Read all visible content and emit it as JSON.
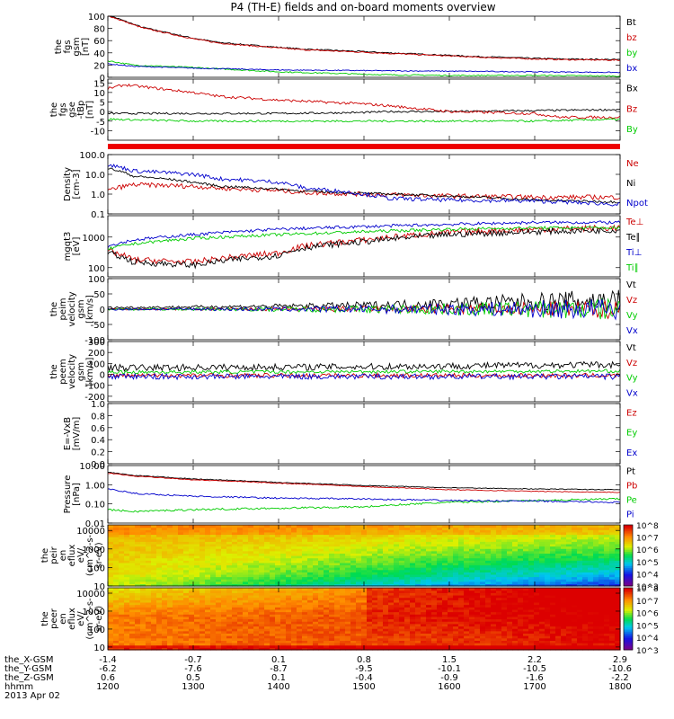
{
  "title": "P4 (TH-E) fields and on-board moments overview",
  "chart_data": [
    {
      "id": "fgs_gsm",
      "type": "line",
      "ylabel": [
        "the",
        "fgs",
        "gsm",
        "[nT]"
      ],
      "ylim": [
        0,
        100
      ],
      "yticks": [
        0,
        20,
        40,
        60,
        80,
        100
      ],
      "ylog": false,
      "series": [
        {
          "name": "Bt",
          "color": "#000000",
          "x": [
            1200,
            1220,
            1240,
            1300,
            1330,
            1400,
            1430,
            1500,
            1530,
            1600,
            1630,
            1700,
            1730,
            1800
          ],
          "y": [
            102,
            92,
            82,
            64,
            57,
            49,
            46,
            42,
            40,
            36,
            34,
            31,
            30,
            29
          ],
          "noise": 1
        },
        {
          "name": "bz",
          "color": "#cc0000",
          "x": [
            1200,
            1220,
            1240,
            1300,
            1330,
            1400,
            1430,
            1500,
            1530,
            1600,
            1630,
            1700,
            1730,
            1800
          ],
          "y": [
            101,
            91,
            81,
            63,
            56,
            48,
            45,
            41,
            39,
            35,
            33,
            30,
            29,
            28
          ],
          "noise": 1
        },
        {
          "name": "by",
          "color": "#00cc00",
          "x": [
            1200,
            1230,
            1300,
            1400,
            1500,
            1530,
            1600,
            1700,
            1800
          ],
          "y": [
            27,
            20,
            16,
            9,
            5,
            4,
            3,
            3,
            2
          ],
          "noise": 1
        },
        {
          "name": "bx",
          "color": "#0000cc",
          "x": [
            1200,
            1230,
            1300,
            1400,
            1500,
            1600,
            1700,
            1800
          ],
          "y": [
            22,
            18,
            15,
            12,
            11,
            10,
            9,
            8
          ],
          "noise": 0.8
        }
      ]
    },
    {
      "id": "fgs_gse",
      "type": "line",
      "ylabel": [
        "the",
        "fgs",
        "gse",
        "-tBp",
        "[nT]"
      ],
      "ylim": [
        -15,
        17
      ],
      "yticks": [
        -10,
        -5,
        0,
        5,
        10,
        15
      ],
      "ylog": false,
      "series": [
        {
          "name": "Bx",
          "color": "#000000",
          "x": [
            1200,
            1230,
            1300,
            1400,
            1500,
            1530,
            1600,
            1700,
            1800
          ],
          "y": [
            -1,
            -1,
            -1,
            -1,
            -0.5,
            0,
            0,
            0.5,
            1
          ],
          "noise": 0.5
        },
        {
          "name": "Bz",
          "color": "#cc0000",
          "x": [
            1200,
            1220,
            1300,
            1330,
            1400,
            1500,
            1530,
            1600,
            1700,
            1730,
            1800
          ],
          "y": [
            12,
            14,
            10,
            8,
            6,
            4,
            3,
            0,
            -1,
            -3,
            -3
          ],
          "noise": 0.7
        },
        {
          "name": "By",
          "color": "#00cc00",
          "x": [
            1200,
            1300,
            1400,
            1500,
            1600,
            1700,
            1800
          ],
          "y": [
            -4,
            -5,
            -5,
            -5,
            -5,
            -5,
            -4
          ],
          "noise": 0.5
        }
      ]
    },
    {
      "id": "density",
      "type": "line",
      "ylabel": [
        "Density",
        "[cm-3]"
      ],
      "ylim": [
        0.1,
        100
      ],
      "yticks": [
        0.1,
        1.0,
        10.0,
        100.0
      ],
      "yticklabels": [
        "0.1",
        "1.0",
        "10.0",
        "100.0"
      ],
      "ylog": true,
      "series": [
        {
          "name": "Ne",
          "color": "#cc0000",
          "x": [
            1200,
            1230,
            1300,
            1330,
            1400,
            1430,
            1500,
            1600,
            1700,
            1800
          ],
          "y": [
            1.5,
            3,
            2.5,
            2,
            1.5,
            1.2,
            1,
            0.8,
            0.7,
            0.7
          ],
          "noise": 0.12
        },
        {
          "name": "Ni",
          "color": "#000000",
          "x": [
            1200,
            1230,
            1300,
            1330,
            1400,
            1430,
            1500,
            1600,
            1700,
            1800
          ],
          "y": [
            20,
            8,
            4,
            2.5,
            1.8,
            1.4,
            1.1,
            0.8,
            0.5,
            0.4
          ],
          "noise": 0.06
        },
        {
          "name": "Npot",
          "color": "#0000cc",
          "x": [
            1200,
            1230,
            1300,
            1330,
            1400,
            1430,
            1500,
            1530,
            1600,
            1700,
            1800
          ],
          "y": [
            30,
            15,
            10,
            6,
            4,
            2,
            1,
            0.6,
            0.5,
            0.45,
            0.3
          ],
          "noise": 0.1
        }
      ]
    },
    {
      "id": "temperature",
      "type": "line",
      "ylabel": [
        "mgqt3",
        "[eV]"
      ],
      "ylim": [
        50,
        5000
      ],
      "yticks": [
        100,
        1000
      ],
      "yticklabels": [
        "100",
        "1000"
      ],
      "ylog": true,
      "series": [
        {
          "name": "Te⊥",
          "color": "#cc0000",
          "x": [
            1200,
            1230,
            1300,
            1400,
            1430,
            1500,
            1600,
            1700,
            1800
          ],
          "y": [
            350,
            180,
            150,
            300,
            500,
            800,
            1400,
            1800,
            2000
          ],
          "noise": 0.1
        },
        {
          "name": "Te∥",
          "color": "#000000",
          "x": [
            1200,
            1230,
            1300,
            1400,
            1430,
            1500,
            1600,
            1700,
            1800
          ],
          "y": [
            300,
            150,
            120,
            250,
            450,
            700,
            1200,
            1500,
            1700
          ],
          "noise": 0.1
        },
        {
          "name": "Ti⊥",
          "color": "#0000cc",
          "x": [
            1200,
            1230,
            1300,
            1400,
            1500,
            1600,
            1700,
            1800
          ],
          "y": [
            500,
            800,
            1200,
            1800,
            2200,
            2600,
            3000,
            3000
          ],
          "noise": 0.05
        },
        {
          "name": "Ti∥",
          "color": "#00cc00",
          "x": [
            1200,
            1230,
            1300,
            1400,
            1500,
            1600,
            1700,
            1800
          ],
          "y": [
            400,
            600,
            900,
            1200,
            1500,
            1800,
            2000,
            2000
          ],
          "noise": 0.05
        }
      ]
    },
    {
      "id": "peim_velocity",
      "type": "line",
      "ylabel": [
        "the",
        "peim",
        "velocity",
        "gsm",
        "[km/s]"
      ],
      "ylim": [
        -100,
        100
      ],
      "yticks": [
        -100,
        -50,
        0,
        50,
        100
      ],
      "ylog": false,
      "series": [
        {
          "name": "Vt",
          "color": "#000000",
          "x": [
            1200,
            1500,
            1700,
            1800
          ],
          "y": [
            5,
            12,
            25,
            30
          ],
          "noise": 12,
          "growth": true
        },
        {
          "name": "Vz",
          "color": "#cc0000",
          "x": [
            1200,
            1800
          ],
          "y": [
            0,
            0
          ],
          "noise": 10,
          "growth": true
        },
        {
          "name": "Vy",
          "color": "#00cc00",
          "x": [
            1200,
            1800
          ],
          "y": [
            0,
            0
          ],
          "noise": 12,
          "growth": true
        },
        {
          "name": "Vx",
          "color": "#0000cc",
          "x": [
            1200,
            1800
          ],
          "y": [
            0,
            0
          ],
          "noise": 12,
          "growth": true
        }
      ]
    },
    {
      "id": "peem_velocity",
      "type": "line",
      "ylabel": [
        "the",
        "peem",
        "velocity",
        "gsm",
        "[km/s]"
      ],
      "ylim": [
        -250,
        300
      ],
      "yticks": [
        -200,
        -100,
        0,
        100,
        200,
        300
      ],
      "ylog": false,
      "series": [
        {
          "name": "Vt",
          "color": "#000000",
          "x": [
            1200,
            1500,
            1800
          ],
          "y": [
            60,
            70,
            90
          ],
          "noise": 30
        },
        {
          "name": "Vz",
          "color": "#cc0000",
          "x": [
            1200,
            1800
          ],
          "y": [
            -10,
            -10
          ],
          "noise": 20
        },
        {
          "name": "Vy",
          "color": "#00cc00",
          "x": [
            1200,
            1800
          ],
          "y": [
            20,
            30
          ],
          "noise": 15
        },
        {
          "name": "Vx",
          "color": "#0000cc",
          "x": [
            1200,
            1800
          ],
          "y": [
            -20,
            -20
          ],
          "noise": 25
        }
      ]
    },
    {
      "id": "efield",
      "type": "line",
      "ylabel": [
        "E=-VxB",
        "[mV/m]"
      ],
      "ylim": [
        0,
        1
      ],
      "yticks": [
        0.0,
        0.2,
        0.4,
        0.6,
        0.8,
        1.0
      ],
      "yticklabels": [
        "0.0",
        "0.2",
        "0.4",
        "0.6",
        "0.8",
        "1.0"
      ],
      "ylog": false,
      "series": [
        {
          "name": "Ez",
          "color": "#cc0000",
          "x": [],
          "y": []
        },
        {
          "name": "Ey",
          "color": "#00cc00",
          "x": [],
          "y": []
        },
        {
          "name": "Ex",
          "color": "#0000cc",
          "x": [],
          "y": []
        }
      ]
    },
    {
      "id": "pressure",
      "type": "line",
      "ylabel": [
        "Pressure",
        "[nPa]"
      ],
      "ylim": [
        0.01,
        10
      ],
      "yticks": [
        0.01,
        0.1,
        1.0,
        10.0
      ],
      "yticklabels": [
        "0.01",
        "0.10",
        "1.00",
        "10.00"
      ],
      "ylog": true,
      "series": [
        {
          "name": "Pt",
          "color": "#000000",
          "x": [
            1200,
            1230,
            1300,
            1400,
            1500,
            1600,
            1700,
            1800
          ],
          "y": [
            4.5,
            3,
            2,
            1.3,
            0.9,
            0.7,
            0.6,
            0.55
          ],
          "noise": 0.02
        },
        {
          "name": "Pb",
          "color": "#cc0000",
          "x": [
            1200,
            1230,
            1300,
            1400,
            1500,
            1600,
            1700,
            1800
          ],
          "y": [
            4,
            2.8,
            1.8,
            1.2,
            0.8,
            0.55,
            0.45,
            0.4
          ],
          "noise": 0.02
        },
        {
          "name": "Pe",
          "color": "#00cc00",
          "x": [
            1200,
            1230,
            1300,
            1400,
            1500,
            1600,
            1700,
            1800
          ],
          "y": [
            0.05,
            0.04,
            0.05,
            0.06,
            0.07,
            0.12,
            0.15,
            0.18
          ],
          "noise": 0.05
        },
        {
          "name": "Pi",
          "color": "#0000cc",
          "x": [
            1200,
            1230,
            1300,
            1400,
            1500,
            1600,
            1700,
            1800
          ],
          "y": [
            0.6,
            0.35,
            0.25,
            0.2,
            0.18,
            0.15,
            0.14,
            0.12
          ],
          "noise": 0.04
        }
      ]
    },
    {
      "id": "peir_spectrogram",
      "type": "heatmap",
      "ylabel": [
        "the",
        "peir",
        "en",
        "eflux",
        "eV/",
        "(cm^2-s-",
        "sr-eV)"
      ],
      "ylim": [
        10,
        20000
      ],
      "yticks": [
        10,
        100,
        1000,
        10000
      ],
      "yticklabels": [
        "10",
        "100",
        "1000",
        "10000"
      ],
      "ylog": true,
      "colorbar": {
        "min_exp": 3,
        "max_exp": 8,
        "labels": [
          "10^3",
          "10^4",
          "10^5",
          "10^6",
          "10^7",
          "10^8"
        ]
      },
      "description_fields": {
        "low_energy_band_level": [
          6.2,
          5.4,
          4.6,
          4.0
        ],
        "high_energy_band_level": [
          6.8,
          6.8,
          6.6,
          6.5
        ]
      }
    },
    {
      "id": "peer_spectrogram",
      "type": "heatmap",
      "ylabel": [
        "the",
        "peer",
        "en",
        "eflux",
        "eV/",
        "(cm^2-s-",
        "sr-eV)"
      ],
      "ylim": [
        7,
        20000
      ],
      "yticks": [
        10,
        100,
        1000,
        10000
      ],
      "yticklabels": [
        "10",
        "100",
        "1000",
        "10000"
      ],
      "ylog": true,
      "colorbar": {
        "min_exp": 3,
        "max_exp": 8,
        "labels": [
          "10^3",
          "10^4",
          "10^5",
          "10^6",
          "10^7",
          "10^8"
        ]
      },
      "description_fields": {
        "level": [
          7.2,
          7.4,
          7.6,
          7.9
        ]
      }
    }
  ],
  "xaxis": {
    "range": [
      1200,
      1800
    ],
    "rows": [
      {
        "label": "the_X-GSM",
        "values": [
          "-1.4",
          "-0.7",
          "0.1",
          "0.8",
          "1.5",
          "2.2",
          "2.9"
        ]
      },
      {
        "label": "the_Y-GSM",
        "values": [
          "-6.2",
          "-7.6",
          "-8.7",
          "-9.5",
          "-10.1",
          "-10.5",
          "-10.6"
        ]
      },
      {
        "label": "the_Z-GSM",
        "values": [
          "0.6",
          "0.5",
          "0.1",
          "-0.4",
          "-0.9",
          "-1.6",
          "-2.2"
        ]
      },
      {
        "label": "hhmm",
        "values": [
          "1200",
          "1300",
          "1400",
          "1500",
          "1600",
          "1700",
          "1800"
        ]
      }
    ],
    "date": "2013 Apr 02"
  }
}
